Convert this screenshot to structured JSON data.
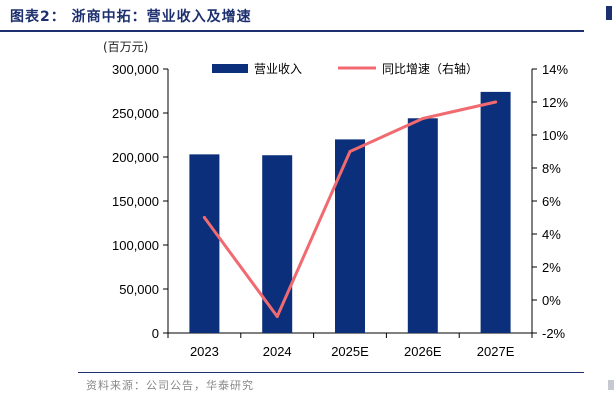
{
  "header": {
    "title": "图表2： 浙商中拓：营业收入及增速",
    "unit": "(百万元)"
  },
  "footer": {
    "source": "资料来源：公司公告，华泰研究"
  },
  "colors": {
    "bar": "#0b2f7a",
    "line": "#f06a70",
    "title": "#1c2f6e"
  },
  "chart_data": {
    "type": "bar+line",
    "categories": [
      "2023",
      "2024",
      "2025E",
      "2026E",
      "2027E"
    ],
    "series": [
      {
        "name": "营业收入",
        "type": "bar",
        "axis": "left",
        "values": [
          203000,
          202000,
          220000,
          244000,
          274000
        ]
      },
      {
        "name": "同比增速（右轴）",
        "type": "line",
        "axis": "right",
        "values": [
          5.0,
          -1.0,
          9.0,
          11.0,
          12.0
        ]
      }
    ],
    "y_left": {
      "min": 0,
      "max": 300000,
      "ticks": [
        0,
        50000,
        100000,
        150000,
        200000,
        250000,
        300000
      ],
      "tick_labels": [
        "0",
        "50,000",
        "100,000",
        "150,000",
        "200,000",
        "250,000",
        "300,000"
      ]
    },
    "y_right": {
      "min": -2,
      "max": 14,
      "ticks": [
        -2,
        0,
        2,
        4,
        6,
        8,
        10,
        12,
        14
      ],
      "tick_labels": [
        "-2%",
        "0%",
        "2%",
        "4%",
        "6%",
        "8%",
        "10%",
        "12%",
        "14%"
      ]
    },
    "grid": false,
    "legend_position": "top"
  }
}
